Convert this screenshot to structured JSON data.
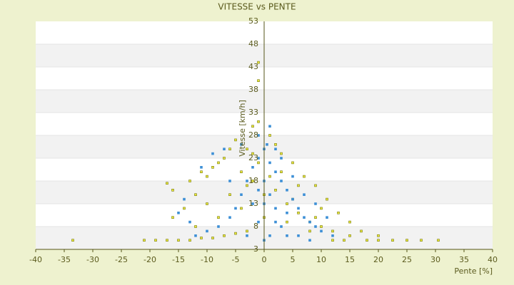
{
  "chart_data": {
    "type": "scatter",
    "title": "VITESSE vs PENTE",
    "x_label": "Pente [%]",
    "y_label": "Vitesse [km/h]",
    "xlim": [
      -40,
      40
    ],
    "xticks": [
      -40,
      -35,
      -30,
      -25,
      -20,
      -15,
      -10,
      -5,
      0,
      5,
      10,
      15,
      20,
      25,
      30,
      35,
      40
    ],
    "ylim": [
      3,
      53
    ],
    "yticks": [
      3,
      8,
      13,
      18,
      23,
      28,
      33,
      38,
      43,
      48,
      53
    ],
    "grid": true,
    "series": [
      {
        "color": "#7a7a10",
        "fill": "#e8e83a",
        "x": [
          -33.5,
          -21,
          -19,
          -17,
          -15,
          -13,
          -11,
          -9,
          -7,
          -5,
          -3,
          18,
          20,
          22.5,
          25,
          27.5,
          30.5,
          15,
          12,
          10,
          8,
          6,
          4,
          2,
          1,
          -1,
          -2,
          -3,
          -5,
          -6,
          -8,
          -10,
          -12,
          -14,
          -16,
          -17,
          -16,
          -11,
          -9,
          -7,
          -4,
          -2,
          0,
          1,
          2,
          3,
          5,
          7,
          9,
          11,
          13,
          15,
          17,
          20,
          -1,
          -1,
          -2,
          -1,
          -12,
          -8,
          -4,
          0,
          4,
          8,
          14,
          12,
          -6,
          -3,
          3,
          6,
          10,
          -10,
          -13,
          5,
          9
        ],
        "values": [
          5,
          5,
          5,
          5,
          5,
          5,
          5.5,
          5.5,
          6,
          6.5,
          7,
          5,
          5,
          5,
          5,
          5,
          5,
          6,
          7,
          8,
          9,
          11,
          13,
          16,
          19,
          22,
          24,
          25,
          27,
          25,
          22,
          19,
          15,
          12,
          10,
          17.5,
          16,
          20,
          21,
          23,
          20,
          18,
          15,
          28,
          26,
          24,
          22,
          19,
          17,
          14,
          11,
          9,
          7,
          6,
          44,
          40,
          30,
          31,
          8,
          10,
          12,
          10,
          9,
          7,
          5,
          5,
          15,
          17,
          20,
          17,
          12,
          13,
          18,
          14,
          10
        ]
      },
      {
        "color": "#3d8fd6",
        "fill": "#3d8fd6",
        "x": [
          0,
          0.5,
          -1,
          1,
          2,
          -2,
          3,
          4,
          5,
          6,
          7,
          8,
          9,
          10,
          12,
          -3,
          -4,
          -5,
          -6,
          -8,
          -10,
          -12,
          -14,
          -9,
          -7,
          -11,
          1,
          -1,
          2,
          3,
          4,
          1,
          -1,
          -2,
          0,
          1,
          2,
          0,
          -3,
          6,
          8,
          11,
          5,
          3,
          -4,
          -15,
          -13,
          7,
          9,
          -6,
          0,
          2,
          -1,
          4
        ],
        "values": [
          25,
          26,
          23,
          22,
          20,
          21,
          18,
          16,
          14,
          12,
          10,
          9,
          8,
          7,
          6,
          18,
          15,
          12,
          10,
          8,
          7,
          6,
          14,
          24,
          25,
          21,
          30,
          28,
          12,
          8,
          6,
          6,
          9,
          13,
          18,
          15,
          25,
          5,
          6,
          6,
          5,
          10,
          19,
          23,
          26,
          11,
          9,
          15,
          13,
          18,
          13,
          9,
          16,
          11
        ]
      }
    ]
  }
}
